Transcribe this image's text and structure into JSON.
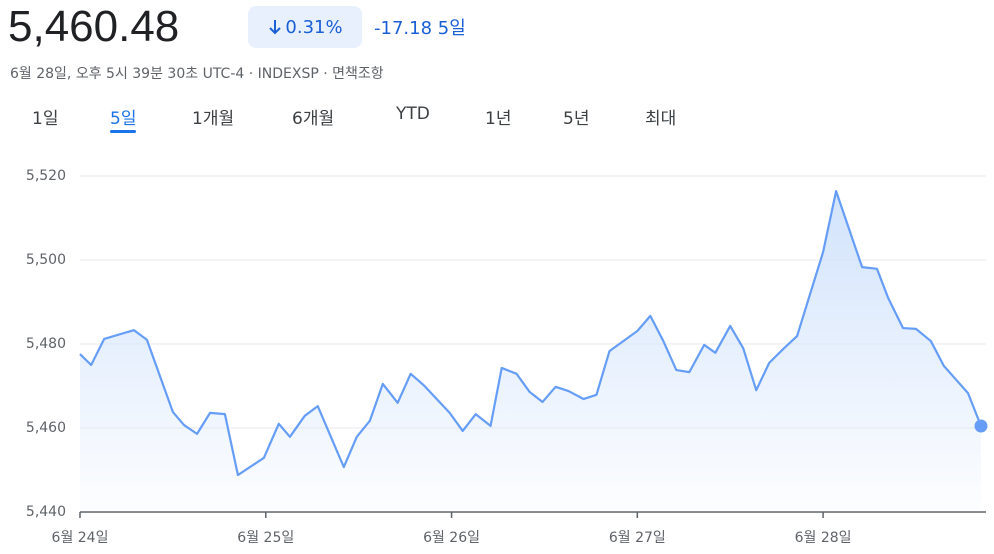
{
  "header": {
    "price": "5,460.48",
    "change_pct": "0.31%",
    "change": "-17.18",
    "period": "5일",
    "meta": "6월 28일, 오후 5시 39분 30초 UTC-4 · INDEXSP · 면책조항"
  },
  "tabs": [
    "1일",
    "5일",
    "1개월",
    "6개월",
    "YTD",
    "1년",
    "5년",
    "최대"
  ],
  "active_tab": 1,
  "chart_data": {
    "type": "line",
    "grid": true,
    "x": [
      0,
      0.06,
      0.13,
      0.29,
      0.36,
      0.5,
      0.56,
      0.63,
      0.7,
      0.78,
      0.85,
      0.99,
      1.07,
      1.13,
      1.21,
      1.28,
      1.42,
      1.49,
      1.56,
      1.63,
      1.71,
      1.78,
      1.85,
      1.99,
      2.06,
      2.13,
      2.21,
      2.27,
      2.35,
      2.42,
      2.49,
      2.56,
      2.63,
      2.71,
      2.78,
      2.85,
      3.0,
      3.07,
      3.14,
      3.21,
      3.28,
      3.36,
      3.42,
      3.5,
      3.57,
      3.64,
      3.71,
      3.79,
      3.86,
      4.0,
      4.07,
      4.21,
      4.29,
      4.35,
      4.43,
      4.5,
      4.58,
      4.65,
      4.78,
      4.85
    ],
    "series": [
      {
        "color": "#669df6",
        "values": [
          5477.6,
          5475,
          5481.2,
          5483.3,
          5481,
          5463.8,
          5460.7,
          5458.6,
          5463.6,
          5463.3,
          5448.8,
          5452.9,
          5461,
          5457.9,
          5462.9,
          5465.2,
          5450.7,
          5457.9,
          5461.7,
          5470.5,
          5466,
          5472.9,
          5470.2,
          5463.6,
          5459.3,
          5463.3,
          5460.5,
          5474.3,
          5472.9,
          5468.6,
          5466.2,
          5469.8,
          5468.8,
          5466.9,
          5467.9,
          5478.3,
          5483.1,
          5486.7,
          5480.7,
          5473.8,
          5473.3,
          5479.8,
          5477.9,
          5484.3,
          5479,
          5469,
          5475.5,
          5479,
          5481.9,
          5501.9,
          5516.4,
          5498.3,
          5497.9,
          5491,
          5483.8,
          5483.6,
          5480.7,
          5474.8,
          5468.3,
          5460.48
        ]
      }
    ],
    "xlim": [
      0,
      4.85
    ],
    "xticks": [
      {
        "value": 0,
        "label": "6월 24일"
      },
      {
        "value": 1,
        "label": "6월 25일"
      },
      {
        "value": 2,
        "label": "6월 26일"
      },
      {
        "value": 3,
        "label": "6월 27일"
      },
      {
        "value": 4,
        "label": "6월 28일"
      }
    ],
    "ylim": [
      5440,
      5520
    ],
    "yticks": [
      {
        "value": 5440,
        "label": "5,440"
      },
      {
        "value": 5460,
        "label": "5,460"
      },
      {
        "value": 5480,
        "label": "5,480"
      },
      {
        "value": 5500,
        "label": "5,500"
      },
      {
        "value": 5520,
        "label": "5,520"
      }
    ]
  }
}
